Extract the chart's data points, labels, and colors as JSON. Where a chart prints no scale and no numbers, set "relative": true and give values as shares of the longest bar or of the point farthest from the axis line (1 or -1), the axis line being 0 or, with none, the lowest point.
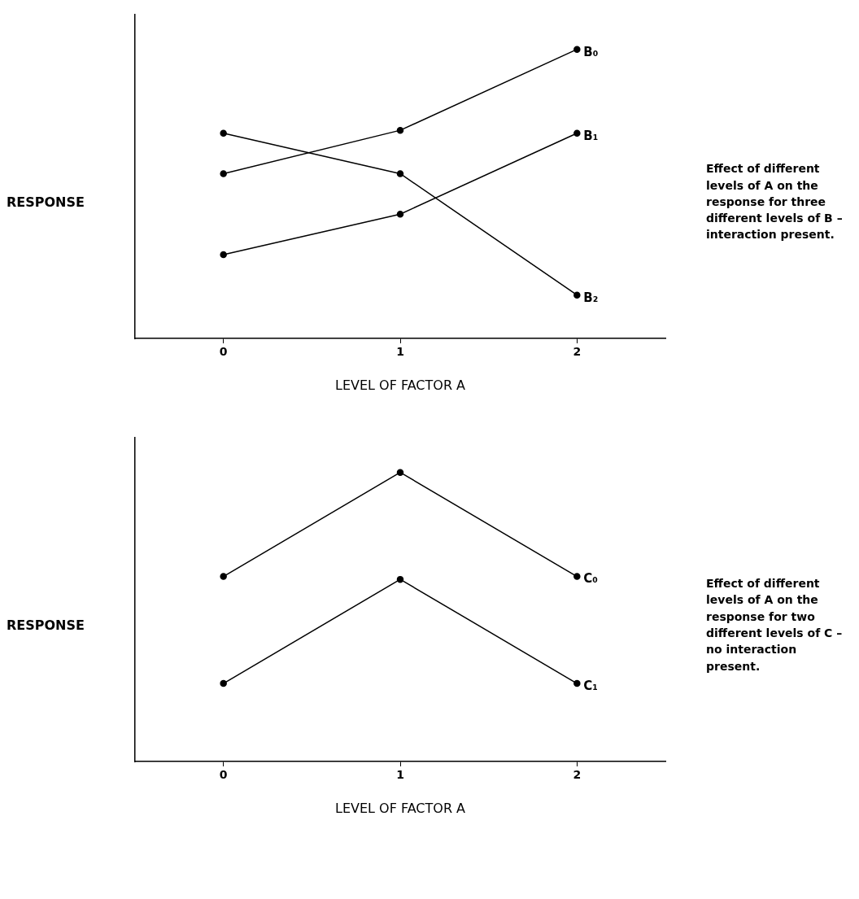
{
  "chart_data": [
    {
      "type": "line",
      "categories": [
        "0",
        "1",
        "2"
      ],
      "relative": true,
      "ylabel": "RESPONSE",
      "xlabel": "LEVEL OF FACTOR A",
      "marker": "circle",
      "grid": false,
      "legend": false,
      "annotations": [
        "Effect of different levels of A on the response for three different levels of B – interaction present."
      ],
      "series": [
        {
          "name": "B₀",
          "color": "#000000",
          "values": [
            0.57,
            0.72,
            1
          ]
        },
        {
          "name": "B₁",
          "color": "#000000",
          "values": [
            0.29,
            0.43,
            0.71
          ]
        },
        {
          "name": "B₂",
          "color": "#000000",
          "values": [
            0.71,
            0.57,
            0.15
          ]
        }
      ]
    },
    {
      "type": "line",
      "categories": [
        "0",
        "1",
        "2"
      ],
      "relative": true,
      "ylabel": "RESPONSE",
      "xlabel": "LEVEL OF FACTOR A",
      "marker": "circle",
      "grid": false,
      "legend": false,
      "annotations": [
        "Effect of different levels of A on the response for two different levels of C – no interaction present."
      ],
      "series": [
        {
          "name": "C₀",
          "color": "#000000",
          "values": [
            0.64,
            1,
            0.64
          ]
        },
        {
          "name": "C₁",
          "color": "#000000",
          "values": [
            0.27,
            0.63,
            0.27
          ]
        }
      ]
    }
  ]
}
